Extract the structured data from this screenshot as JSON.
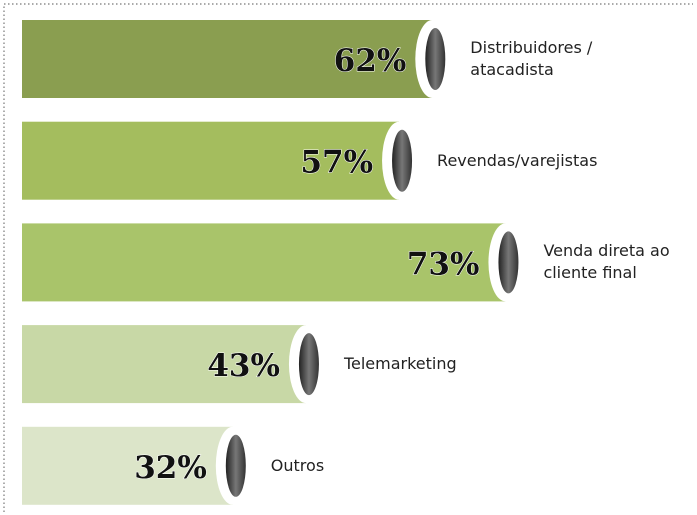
{
  "chart_data": {
    "type": "bar",
    "categories": [
      "Distribuidores / atacadista",
      "Revendas/varejistas",
      "Venda direta ao cliente final",
      "Telemarketing",
      "Outros"
    ],
    "values": [
      62,
      57,
      73,
      43,
      32
    ],
    "value_labels": [
      "62%",
      "57%",
      "73%",
      "43%",
      "32%"
    ],
    "colors": [
      "#8a9e50",
      "#a4bd5e",
      "#a9c46a",
      "#c8d8a6",
      "#dce5c9"
    ]
  }
}
